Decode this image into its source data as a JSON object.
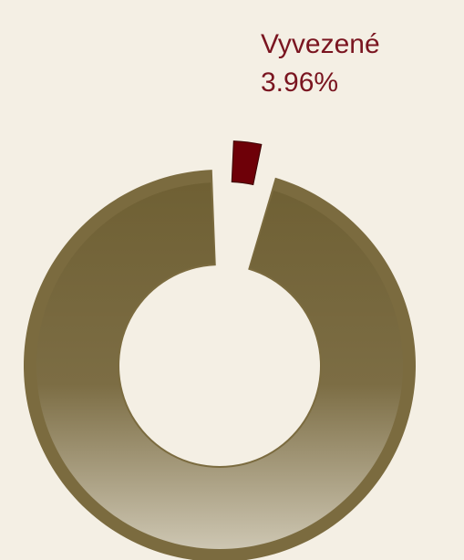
{
  "chart_data": {
    "type": "pie",
    "style": "donut",
    "slices": [
      {
        "name": "Vyvezené",
        "value": 3.96,
        "value_label": "3.96%",
        "color": "#6e0008",
        "exploded": true,
        "labeled": true
      },
      {
        "name": "",
        "value": 96.04,
        "color": "#7b6b3f",
        "exploded": false,
        "labeled": false
      }
    ]
  },
  "colors": {
    "background": "#f4efe4",
    "label_text": "#7a1520",
    "slice_exported": "#6e0008",
    "slice_rest_top": "#6f6034",
    "slice_rest_bottom": "#c9c2ad",
    "slice_rest_rim": "#7b6b3f"
  }
}
